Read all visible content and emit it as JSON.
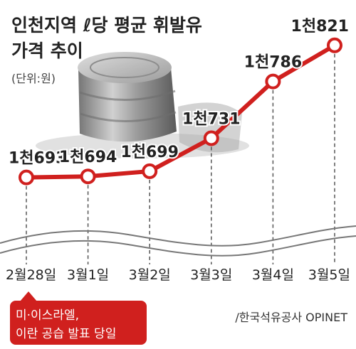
{
  "chart_data": {
    "type": "line",
    "title_line1": "인천지역 ℓ당 평균 휘발유",
    "title_line2": "가격 추이",
    "unit": "(단위:원)",
    "categories": [
      "2월28일",
      "3월1일",
      "3월2일",
      "3월3일",
      "3월4일",
      "3월5일"
    ],
    "values": [
      1693,
      1694,
      1699,
      1731,
      1786,
      1821
    ],
    "value_labels": [
      "1천693",
      "1천694",
      "1천699",
      "1천731",
      "1천786",
      "1천821"
    ],
    "annotation": {
      "category": "2월28일",
      "lines": [
        "미·이스라엘,",
        "이란 공습 발표 당일"
      ]
    },
    "source": "/한국석유공사 OPINET",
    "y_axis": "broken",
    "grid": "vertical dashed",
    "colors": {
      "line": "#d0201e",
      "marker_fill": "#ffffff",
      "annotation_bg": "#d0201e",
      "text": "#222222"
    }
  }
}
